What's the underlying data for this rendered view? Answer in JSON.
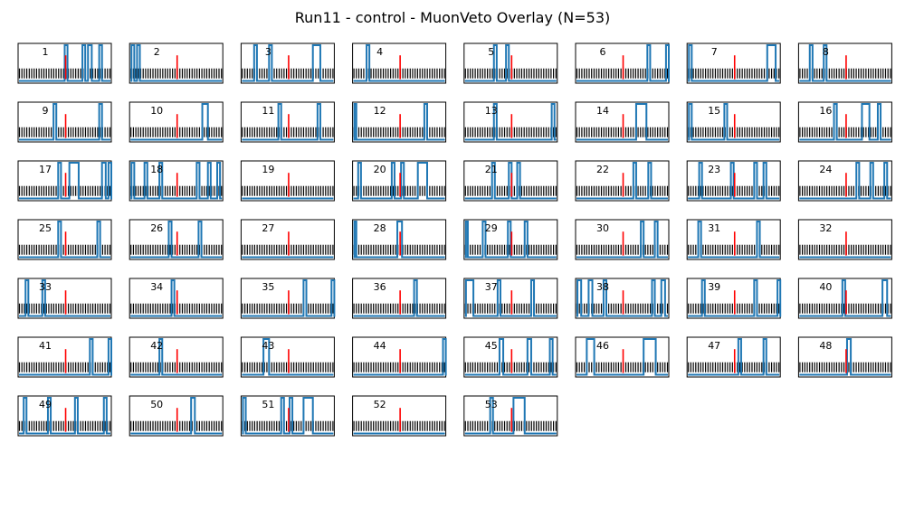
{
  "title": "Run11 - control - MuonVeto Overlay (N=53)",
  "colors": {
    "veto": "#1f77b4",
    "marker": "#ff0000",
    "pulse": "#000000",
    "frame": "#000000"
  },
  "layout": {
    "columns": 8,
    "rows": 7
  },
  "chart_data": {
    "type": "line",
    "title": "Run11 - control - MuonVeto Overlay (N=53)",
    "description_of_panels": "small multiples",
    "panel_labels": [
      "1",
      "2",
      "3",
      "4",
      "5",
      "6",
      "7",
      "8",
      "9",
      "10",
      "11",
      "12",
      "13",
      "14",
      "15",
      "16",
      "17",
      "18",
      "19",
      "20",
      "21",
      "22",
      "23",
      "24",
      "25",
      "26",
      "27",
      "28",
      "29",
      "30",
      "31",
      "32",
      "33",
      "34",
      "35",
      "36",
      "37",
      "38",
      "39",
      "40",
      "41",
      "42",
      "43",
      "44",
      "45",
      "46",
      "47",
      "48",
      "49",
      "50",
      "51",
      "52",
      "53"
    ],
    "xlim": [
      0,
      1
    ],
    "ylim": [
      0,
      1
    ],
    "panels": [
      {
        "label": "1",
        "marker_x": 0.51,
        "veto_high": [
          [
            0.5,
            0.53
          ],
          [
            0.69,
            0.72
          ],
          [
            0.75,
            0.79
          ],
          [
            0.87,
            0.9
          ]
        ]
      },
      {
        "label": "2",
        "marker_x": 0.51,
        "veto_high": [
          [
            0.02,
            0.05
          ],
          [
            0.08,
            0.11
          ]
        ]
      },
      {
        "label": "3",
        "marker_x": 0.51,
        "veto_high": [
          [
            0.14,
            0.17
          ],
          [
            0.3,
            0.33
          ],
          [
            0.77,
            0.85
          ]
        ]
      },
      {
        "label": "4",
        "marker_x": 0.51,
        "veto_high": [
          [
            0.15,
            0.18
          ]
        ]
      },
      {
        "label": "5",
        "marker_x": 0.51,
        "veto_high": [
          [
            0.32,
            0.35
          ],
          [
            0.45,
            0.48
          ]
        ]
      },
      {
        "label": "6",
        "marker_x": 0.51,
        "veto_high": [
          [
            0.77,
            0.8
          ],
          [
            0.97,
            1.0
          ]
        ]
      },
      {
        "label": "7",
        "marker_x": 0.51,
        "veto_high": [
          [
            0.02,
            0.05
          ],
          [
            0.86,
            0.95
          ]
        ]
      },
      {
        "label": "8",
        "marker_x": 0.51,
        "veto_high": [
          [
            0.12,
            0.15
          ],
          [
            0.27,
            0.3
          ]
        ]
      },
      {
        "label": "9",
        "marker_x": 0.51,
        "veto_high": [
          [
            0.38,
            0.41
          ],
          [
            0.87,
            0.9
          ]
        ]
      },
      {
        "label": "10",
        "marker_x": 0.51,
        "veto_high": [
          [
            0.78,
            0.84
          ]
        ]
      },
      {
        "label": "11",
        "marker_x": 0.51,
        "veto_high": [
          [
            0.4,
            0.43
          ],
          [
            0.82,
            0.85
          ]
        ]
      },
      {
        "label": "12",
        "marker_x": 0.51,
        "veto_high": [
          [
            0.02,
            0.04
          ],
          [
            0.77,
            0.8
          ]
        ]
      },
      {
        "label": "13",
        "marker_x": 0.51,
        "veto_high": [
          [
            0.32,
            0.35
          ],
          [
            0.94,
            0.97
          ]
        ]
      },
      {
        "label": "14",
        "marker_x": 0.51,
        "veto_high": [
          [
            0.65,
            0.76
          ]
        ]
      },
      {
        "label": "15",
        "marker_x": 0.51,
        "veto_high": [
          [
            0.02,
            0.05
          ],
          [
            0.4,
            0.43
          ]
        ]
      },
      {
        "label": "16",
        "marker_x": 0.51,
        "veto_high": [
          [
            0.38,
            0.41
          ],
          [
            0.68,
            0.76
          ],
          [
            0.85,
            0.88
          ]
        ]
      },
      {
        "label": "17",
        "marker_x": 0.51,
        "veto_high": [
          [
            0.43,
            0.46
          ],
          [
            0.55,
            0.65
          ],
          [
            0.9,
            0.94
          ],
          [
            0.97,
            1.0
          ]
        ]
      },
      {
        "label": "18",
        "marker_x": 0.51,
        "veto_high": [
          [
            0.02,
            0.05
          ],
          [
            0.16,
            0.19
          ],
          [
            0.32,
            0.35
          ],
          [
            0.72,
            0.75
          ],
          [
            0.84,
            0.87
          ],
          [
            0.94,
            0.97
          ]
        ]
      },
      {
        "label": "19",
        "marker_x": 0.51,
        "veto_high": []
      },
      {
        "label": "20",
        "marker_x": 0.51,
        "veto_high": [
          [
            0.06,
            0.09
          ],
          [
            0.42,
            0.45
          ],
          [
            0.52,
            0.55
          ],
          [
            0.7,
            0.8
          ]
        ]
      },
      {
        "label": "21",
        "marker_x": 0.51,
        "veto_high": [
          [
            0.3,
            0.33
          ],
          [
            0.48,
            0.51
          ],
          [
            0.57,
            0.6
          ]
        ]
      },
      {
        "label": "22",
        "marker_x": 0.51,
        "veto_high": [
          [
            0.62,
            0.65
          ],
          [
            0.78,
            0.81
          ]
        ]
      },
      {
        "label": "23",
        "marker_x": 0.51,
        "veto_high": [
          [
            0.13,
            0.16
          ],
          [
            0.47,
            0.5
          ],
          [
            0.72,
            0.75
          ],
          [
            0.82,
            0.85
          ]
        ]
      },
      {
        "label": "24",
        "marker_x": 0.51,
        "veto_high": [
          [
            0.62,
            0.65
          ],
          [
            0.77,
            0.8
          ],
          [
            0.92,
            0.95
          ]
        ]
      },
      {
        "label": "25",
        "marker_x": 0.51,
        "veto_high": [
          [
            0.43,
            0.46
          ],
          [
            0.85,
            0.88
          ]
        ]
      },
      {
        "label": "26",
        "marker_x": 0.51,
        "veto_high": [
          [
            0.42,
            0.45
          ],
          [
            0.74,
            0.77
          ]
        ]
      },
      {
        "label": "27",
        "marker_x": 0.51,
        "veto_high": []
      },
      {
        "label": "28",
        "marker_x": 0.51,
        "veto_high": [
          [
            0.02,
            0.04
          ],
          [
            0.48,
            0.53
          ]
        ]
      },
      {
        "label": "29",
        "marker_x": 0.51,
        "veto_high": [
          [
            0.02,
            0.04
          ],
          [
            0.2,
            0.23
          ],
          [
            0.47,
            0.5
          ],
          [
            0.65,
            0.68
          ]
        ]
      },
      {
        "label": "30",
        "marker_x": 0.51,
        "veto_high": [
          [
            0.7,
            0.73
          ],
          [
            0.85,
            0.88
          ]
        ]
      },
      {
        "label": "31",
        "marker_x": 0.51,
        "veto_high": [
          [
            0.12,
            0.15
          ],
          [
            0.75,
            0.78
          ]
        ]
      },
      {
        "label": "32",
        "marker_x": 0.51,
        "veto_high": []
      },
      {
        "label": "33",
        "marker_x": 0.51,
        "veto_high": [
          [
            0.08,
            0.11
          ],
          [
            0.26,
            0.29
          ]
        ]
      },
      {
        "label": "34",
        "marker_x": 0.51,
        "veto_high": [
          [
            0.45,
            0.48
          ]
        ]
      },
      {
        "label": "35",
        "marker_x": 0.51,
        "veto_high": [
          [
            0.67,
            0.7
          ],
          [
            0.97,
            1.0
          ]
        ]
      },
      {
        "label": "36",
        "marker_x": 0.51,
        "veto_high": [
          [
            0.66,
            0.69
          ]
        ]
      },
      {
        "label": "37",
        "marker_x": 0.51,
        "veto_high": [
          [
            0.02,
            0.1
          ],
          [
            0.36,
            0.39
          ],
          [
            0.72,
            0.75
          ]
        ]
      },
      {
        "label": "38",
        "marker_x": 0.51,
        "veto_high": [
          [
            0.02,
            0.06
          ],
          [
            0.14,
            0.18
          ],
          [
            0.3,
            0.33
          ],
          [
            0.82,
            0.85
          ],
          [
            0.92,
            0.96
          ]
        ]
      },
      {
        "label": "39",
        "marker_x": 0.51,
        "veto_high": [
          [
            0.16,
            0.19
          ],
          [
            0.72,
            0.75
          ],
          [
            0.97,
            1.0
          ]
        ]
      },
      {
        "label": "40",
        "marker_x": 0.51,
        "veto_high": [
          [
            0.47,
            0.5
          ],
          [
            0.9,
            0.95
          ]
        ]
      },
      {
        "label": "41",
        "marker_x": 0.51,
        "veto_high": [
          [
            0.77,
            0.8
          ],
          [
            0.97,
            1.0
          ]
        ]
      },
      {
        "label": "42",
        "marker_x": 0.51,
        "veto_high": [
          [
            0.32,
            0.35
          ]
        ]
      },
      {
        "label": "43",
        "marker_x": 0.51,
        "veto_high": [
          [
            0.24,
            0.3
          ]
        ]
      },
      {
        "label": "44",
        "marker_x": 0.51,
        "veto_high": [
          [
            0.97,
            1.0
          ]
        ]
      },
      {
        "label": "45",
        "marker_x": 0.51,
        "veto_high": [
          [
            0.38,
            0.42
          ],
          [
            0.68,
            0.72
          ],
          [
            0.92,
            0.95
          ]
        ]
      },
      {
        "label": "46",
        "marker_x": 0.51,
        "veto_high": [
          [
            0.12,
            0.2
          ],
          [
            0.73,
            0.86
          ]
        ]
      },
      {
        "label": "47",
        "marker_x": 0.51,
        "veto_high": [
          [
            0.55,
            0.58
          ],
          [
            0.82,
            0.85
          ]
        ]
      },
      {
        "label": "48",
        "marker_x": 0.51,
        "veto_high": [
          [
            0.52,
            0.56
          ]
        ]
      },
      {
        "label": "49",
        "marker_x": 0.51,
        "veto_high": [
          [
            0.06,
            0.09
          ],
          [
            0.32,
            0.35
          ],
          [
            0.61,
            0.64
          ],
          [
            0.92,
            0.95
          ]
        ]
      },
      {
        "label": "50",
        "marker_x": 0.51,
        "veto_high": [
          [
            0.66,
            0.7
          ]
        ]
      },
      {
        "label": "51",
        "marker_x": 0.51,
        "veto_high": [
          [
            0.02,
            0.05
          ],
          [
            0.43,
            0.46
          ],
          [
            0.52,
            0.55
          ],
          [
            0.67,
            0.77
          ]
        ]
      },
      {
        "label": "52",
        "marker_x": 0.51,
        "veto_high": []
      },
      {
        "label": "53",
        "marker_x": 0.51,
        "veto_high": [
          [
            0.28,
            0.31
          ],
          [
            0.53,
            0.65
          ]
        ]
      }
    ]
  }
}
